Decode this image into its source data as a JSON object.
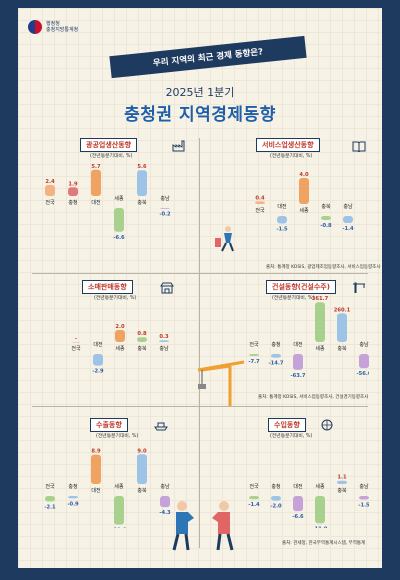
{
  "header": {
    "logo_line1": "행정청",
    "logo_line2": "충청지방통계청",
    "banner": "우리 지역의 최근 경제 동향은?",
    "subtitle": "2025년 1분기",
    "title": "충청권 지역경제동향"
  },
  "colors": {
    "positive": [
      "#f4b183",
      "#e07a7a",
      "#f0a260",
      "#a9d18e",
      "#9dc3e6",
      "#c5a3d9"
    ],
    "negative": [
      "#a9d18e",
      "#9dc3e6",
      "#c5a3d9"
    ],
    "banner": "#1f3a5f",
    "title": "#1f5fa8"
  },
  "chart_data": [
    {
      "id": "mining",
      "type": "bar",
      "title": "광공업생산동향",
      "unit": "(전년동분기대비, %)",
      "categories": [
        "전국",
        "충청",
        "대전",
        "세종",
        "충북",
        "충남"
      ],
      "values": [
        2.4,
        1.9,
        5.7,
        -6.6,
        5.6,
        -0.2
      ],
      "source": ""
    },
    {
      "id": "service",
      "type": "bar",
      "title": "서비스업생산동향",
      "unit": "(전년동분기대비, %)",
      "categories": [
        "전국",
        "대전",
        "세종",
        "충북",
        "충남"
      ],
      "values": [
        0.4,
        -1.5,
        4.0,
        -0.8,
        -1.4
      ],
      "source": "출처: 통계청 KOSIS, 광업제조업동향조사, 서비스업동향조사"
    },
    {
      "id": "retail",
      "type": "bar",
      "title": "소매판매동향",
      "unit": "(전년동분기대비, %)",
      "categories": [
        "전국",
        "대전",
        "세종",
        "충북",
        "충남"
      ],
      "values": [
        0.0,
        -2.9,
        2.0,
        0.8,
        0.3
      ],
      "source": ""
    },
    {
      "id": "construction",
      "type": "bar",
      "title": "건설동향(건설수주)",
      "unit": "(전년동분기대비, %)",
      "categories": [
        "전국",
        "충청",
        "대전",
        "세종",
        "충북",
        "충남"
      ],
      "values": [
        -7.7,
        -14.7,
        -63.7,
        361.7,
        260.1,
        -56.6
      ],
      "source": "출처: 통계청 KOSIS, 서비스업동향조사, 건설경기동향조사"
    },
    {
      "id": "export",
      "type": "bar",
      "title": "수출동향",
      "unit": "(전년동분기대비, %)",
      "categories": [
        "전국",
        "충청",
        "대전",
        "세종",
        "충북",
        "충남"
      ],
      "values": [
        -2.1,
        -0.9,
        8.9,
        -11.0,
        9.0,
        -4.3
      ],
      "source": ""
    },
    {
      "id": "import",
      "type": "bar",
      "title": "수입동향",
      "unit": "(전년동분기대비, %)",
      "categories": [
        "전국",
        "충청",
        "대전",
        "세종",
        "충북",
        "충남"
      ],
      "values": [
        -1.4,
        -2.0,
        -6.6,
        -11.9,
        1.1,
        -1.5
      ],
      "source": "출처: 관세청, 한국무역통계시스템, 무역통계"
    }
  ]
}
